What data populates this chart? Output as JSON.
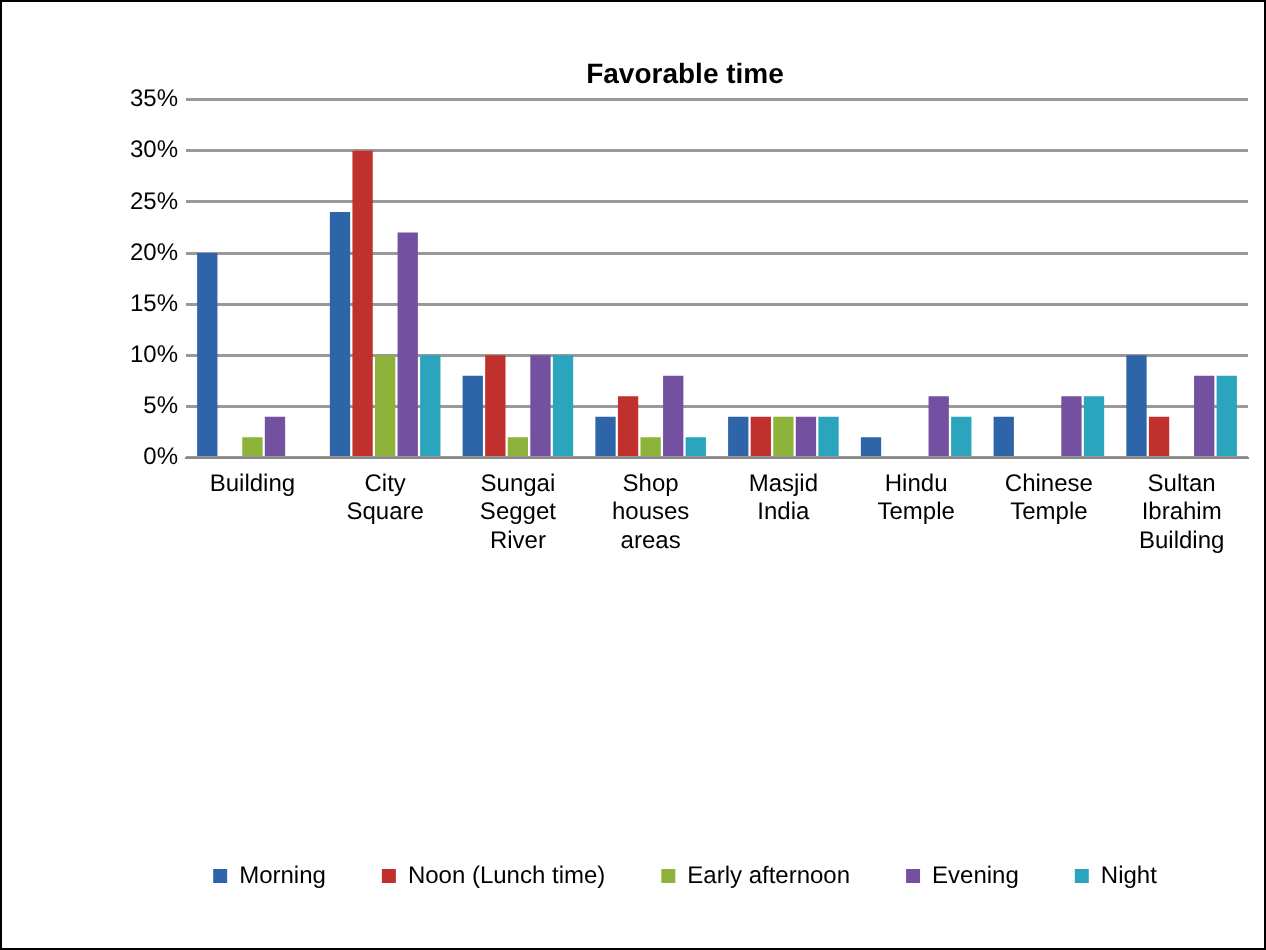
{
  "chart_data": {
    "type": "bar",
    "title": "Favorable time",
    "categories": [
      "Building",
      "City Square",
      "Sungai Segget River",
      "Shop houses areas",
      "Masjid India",
      "Hindu Temple",
      "Chinese Temple",
      "Sultan Ibrahim Building"
    ],
    "series": [
      {
        "name": "Morning",
        "color": "#2e64a8",
        "values": [
          20,
          24,
          8,
          4,
          4,
          2,
          4,
          10
        ]
      },
      {
        "name": "Noon (Lunch time)",
        "color": "#c0302c",
        "values": [
          0,
          30,
          10,
          6,
          4,
          0,
          0,
          4
        ]
      },
      {
        "name": "Early afternoon",
        "color": "#8db33a",
        "values": [
          2,
          10,
          2,
          2,
          4,
          0,
          0,
          0
        ]
      },
      {
        "name": "Evening",
        "color": "#7350a0",
        "values": [
          4,
          22,
          10,
          8,
          4,
          6,
          6,
          8
        ]
      },
      {
        "name": "Night",
        "color": "#2aa5bd",
        "values": [
          0,
          10,
          10,
          2,
          4,
          4,
          6,
          8
        ]
      }
    ],
    "ylim": [
      0,
      35
    ],
    "yticks": [
      {
        "value": 0,
        "label": "0%"
      },
      {
        "value": 5,
        "label": "5%"
      },
      {
        "value": 10,
        "label": "10%"
      },
      {
        "value": 15,
        "label": "15%"
      },
      {
        "value": 20,
        "label": "20%"
      },
      {
        "value": 25,
        "label": "25%"
      },
      {
        "value": 30,
        "label": "30%"
      },
      {
        "value": 35,
        "label": "35%"
      }
    ],
    "grid": "y",
    "legend": "bottom"
  }
}
